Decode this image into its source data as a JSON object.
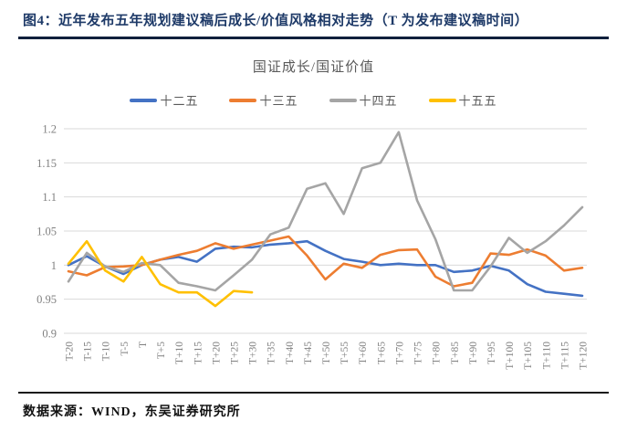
{
  "figure": {
    "title": "图4：近年发布五年规划建议稿后成长/价值风格相对走势（T 为发布建议稿时间）",
    "source_note": "数据来源：WIND，东吴证券研究所"
  },
  "colors": {
    "header_text": "#1e3a68",
    "header_rule": "#10203c",
    "chart_text": "#595959",
    "axis_labels": "#808080",
    "gridlines": "#d9d9d9",
    "series_blue": "#4472C4",
    "series_orange": "#ED7D31",
    "series_gray": "#A5A5A5",
    "series_yellow": "#FFC000"
  },
  "chart_data": {
    "type": "line",
    "title": "国证成长/国证价值",
    "legend_position": "top",
    "grid": "horizontal",
    "ylim": [
      0.9,
      1.2
    ],
    "yticks": [
      0.9,
      0.95,
      1,
      1.05,
      1.1,
      1.15,
      1.2
    ],
    "categories": [
      "T-20",
      "T-15",
      "T-10",
      "T-5",
      "T",
      "T+5",
      "T+10",
      "T+15",
      "T+20",
      "T+25",
      "T+30",
      "T+35",
      "T+40",
      "T+45",
      "T+50",
      "T+55",
      "T+60",
      "T+65",
      "T+70",
      "T+75",
      "T+80",
      "T+85",
      "T+90",
      "T+95",
      "T+100",
      "T+105",
      "T+110",
      "T+115",
      "T+120"
    ],
    "series": [
      {
        "name": "十二五",
        "color": "#4472C4",
        "values": [
          1.0,
          1.013,
          0.998,
          0.987,
          1.0,
          1.008,
          1.012,
          1.005,
          1.024,
          1.027,
          1.026,
          1.03,
          1.032,
          1.035,
          1.021,
          1.009,
          1.005,
          1.0,
          1.002,
          1.0,
          1.0,
          0.99,
          0.992,
          0.999,
          0.992,
          0.972,
          0.961,
          0.958,
          0.955
        ]
      },
      {
        "name": "十三五",
        "color": "#ED7D31",
        "values": [
          0.991,
          0.985,
          0.997,
          0.998,
          1.0,
          1.008,
          1.015,
          1.021,
          1.032,
          1.024,
          1.03,
          1.036,
          1.042,
          1.014,
          0.979,
          1.002,
          0.996,
          1.015,
          1.022,
          1.023,
          0.983,
          0.969,
          0.974,
          1.017,
          1.015,
          1.023,
          1.014,
          0.992,
          0.996
        ]
      },
      {
        "name": "十四五",
        "color": "#A5A5A5",
        "values": [
          0.976,
          1.018,
          0.998,
          0.99,
          1.003,
          1.0,
          0.974,
          0.969,
          0.963,
          0.985,
          1.008,
          1.045,
          1.055,
          1.112,
          1.12,
          1.075,
          1.142,
          1.15,
          1.195,
          1.095,
          1.038,
          0.963,
          0.963,
          0.998,
          1.04,
          1.018,
          1.035,
          1.058,
          1.085
        ]
      },
      {
        "name": "十五五",
        "color": "#FFC000",
        "values": [
          1.002,
          1.035,
          0.992,
          0.976,
          1.012,
          0.972,
          0.96,
          0.96,
          0.94,
          0.962,
          0.96,
          null,
          null,
          null,
          null,
          null,
          null,
          null,
          null,
          null,
          null,
          null,
          null,
          null,
          null,
          null,
          null,
          null,
          null
        ]
      }
    ]
  }
}
